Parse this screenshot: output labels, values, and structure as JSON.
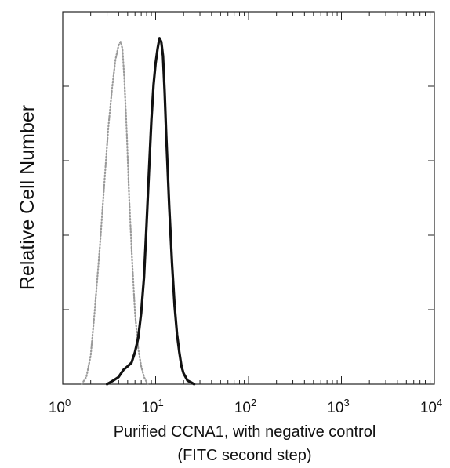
{
  "chart_data": {
    "type": "histogram",
    "ylabel": "Relative Cell Number",
    "xlabel_line1": "Purified CCNA1, with negative control",
    "xlabel_line2": "(FITC second step)",
    "x_scale": "log",
    "xlim": [
      1,
      10000
    ],
    "x_tick_labels": [
      {
        "value": 1,
        "base": "10",
        "exp": "0"
      },
      {
        "value": 10,
        "base": "10",
        "exp": "1"
      },
      {
        "value": 100,
        "base": "10",
        "exp": "2"
      },
      {
        "value": 1000,
        "base": "10",
        "exp": "3"
      },
      {
        "value": 10000,
        "base": "10",
        "exp": "4"
      }
    ],
    "y_ticks_count": 5,
    "ylim": [
      0,
      100
    ],
    "grid": false,
    "series": [
      {
        "role": "negative-control",
        "color": "#9a9a9a",
        "style": "dotted",
        "x": [
          1.6,
          1.8,
          2.0,
          2.2,
          2.5,
          2.8,
          3.1,
          3.4,
          3.7,
          4.0,
          4.2,
          4.4,
          4.6,
          4.9,
          5.2,
          5.6,
          6.0,
          6.5,
          7.0,
          7.5,
          8.2
        ],
        "y": [
          0,
          2,
          8,
          20,
          38,
          56,
          72,
          83,
          91,
          95,
          96,
          94,
          86,
          70,
          52,
          34,
          20,
          10,
          5,
          2,
          0
        ]
      },
      {
        "role": "ccna1",
        "color": "#111111",
        "style": "solid",
        "x": [
          3.0,
          3.5,
          4.0,
          4.5,
          5.0,
          5.5,
          6.0,
          6.5,
          7.0,
          7.5,
          8.0,
          8.5,
          9.0,
          9.5,
          10.0,
          10.5,
          11.0,
          11.5,
          12.0,
          12.5,
          13.0,
          14.0,
          15.0,
          16.0,
          17.0,
          18.0,
          19.0,
          20.0,
          21.0,
          22.0,
          24.0,
          26.0
        ],
        "y": [
          0,
          1,
          2,
          4,
          5,
          6,
          9,
          13,
          20,
          30,
          45,
          60,
          74,
          84,
          90,
          94,
          97,
          96,
          92,
          82,
          70,
          50,
          34,
          22,
          14,
          9,
          5,
          3,
          2,
          1,
          0.5,
          0
        ]
      }
    ]
  }
}
